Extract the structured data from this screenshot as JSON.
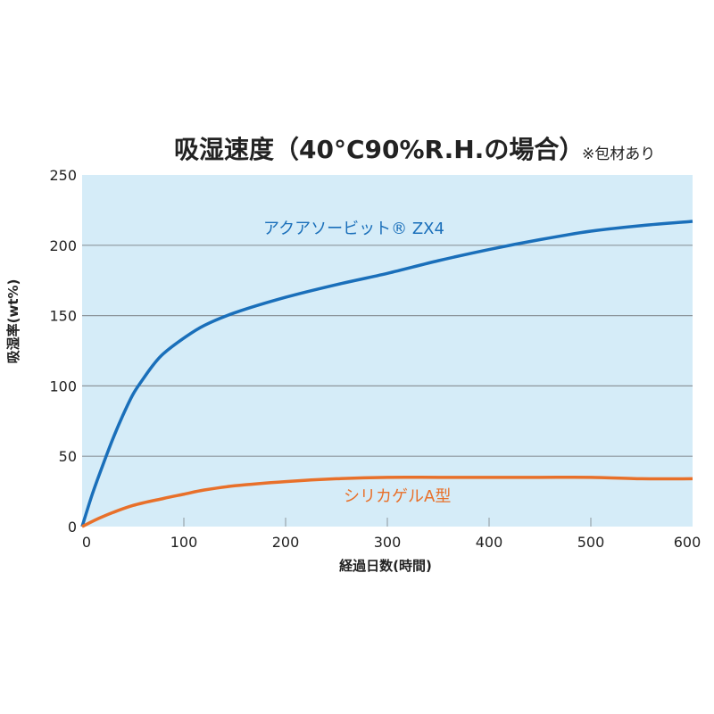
{
  "chart_data": {
    "type": "line",
    "title": "吸湿速度（40°C90%R.H.の場合）",
    "note": "※包材あり",
    "xlabel": "経過日数(時間)",
    "ylabel": "吸湿率(wt%)",
    "xlim": [
      0,
      600
    ],
    "ylim": [
      0,
      250
    ],
    "xticks": [
      "0",
      "100",
      "200",
      "300",
      "400",
      "500",
      "600"
    ],
    "yticks": [
      "0",
      "50",
      "100",
      "150",
      "200",
      "250"
    ],
    "grid": true,
    "series": [
      {
        "name": "アクアソービット® ZX4",
        "color": "#1a6fba",
        "x": [
          0,
          10,
          20,
          30,
          40,
          50,
          60,
          70,
          80,
          100,
          120,
          150,
          200,
          250,
          300,
          350,
          400,
          450,
          500,
          550,
          600
        ],
        "y": [
          0,
          23,
          43,
          62,
          79,
          94,
          105,
          115,
          123,
          134,
          143,
          152,
          163,
          172,
          180,
          189,
          197,
          204,
          210,
          214,
          217
        ]
      },
      {
        "name": "シリカゲルA型",
        "color": "#e8702a",
        "x": [
          0,
          20,
          50,
          80,
          100,
          120,
          150,
          200,
          250,
          300,
          350,
          400,
          450,
          500,
          550,
          600
        ],
        "y": [
          0,
          7,
          15,
          20,
          23,
          26,
          29,
          32,
          34,
          35,
          35,
          35,
          35,
          35,
          34,
          34
        ]
      }
    ]
  }
}
